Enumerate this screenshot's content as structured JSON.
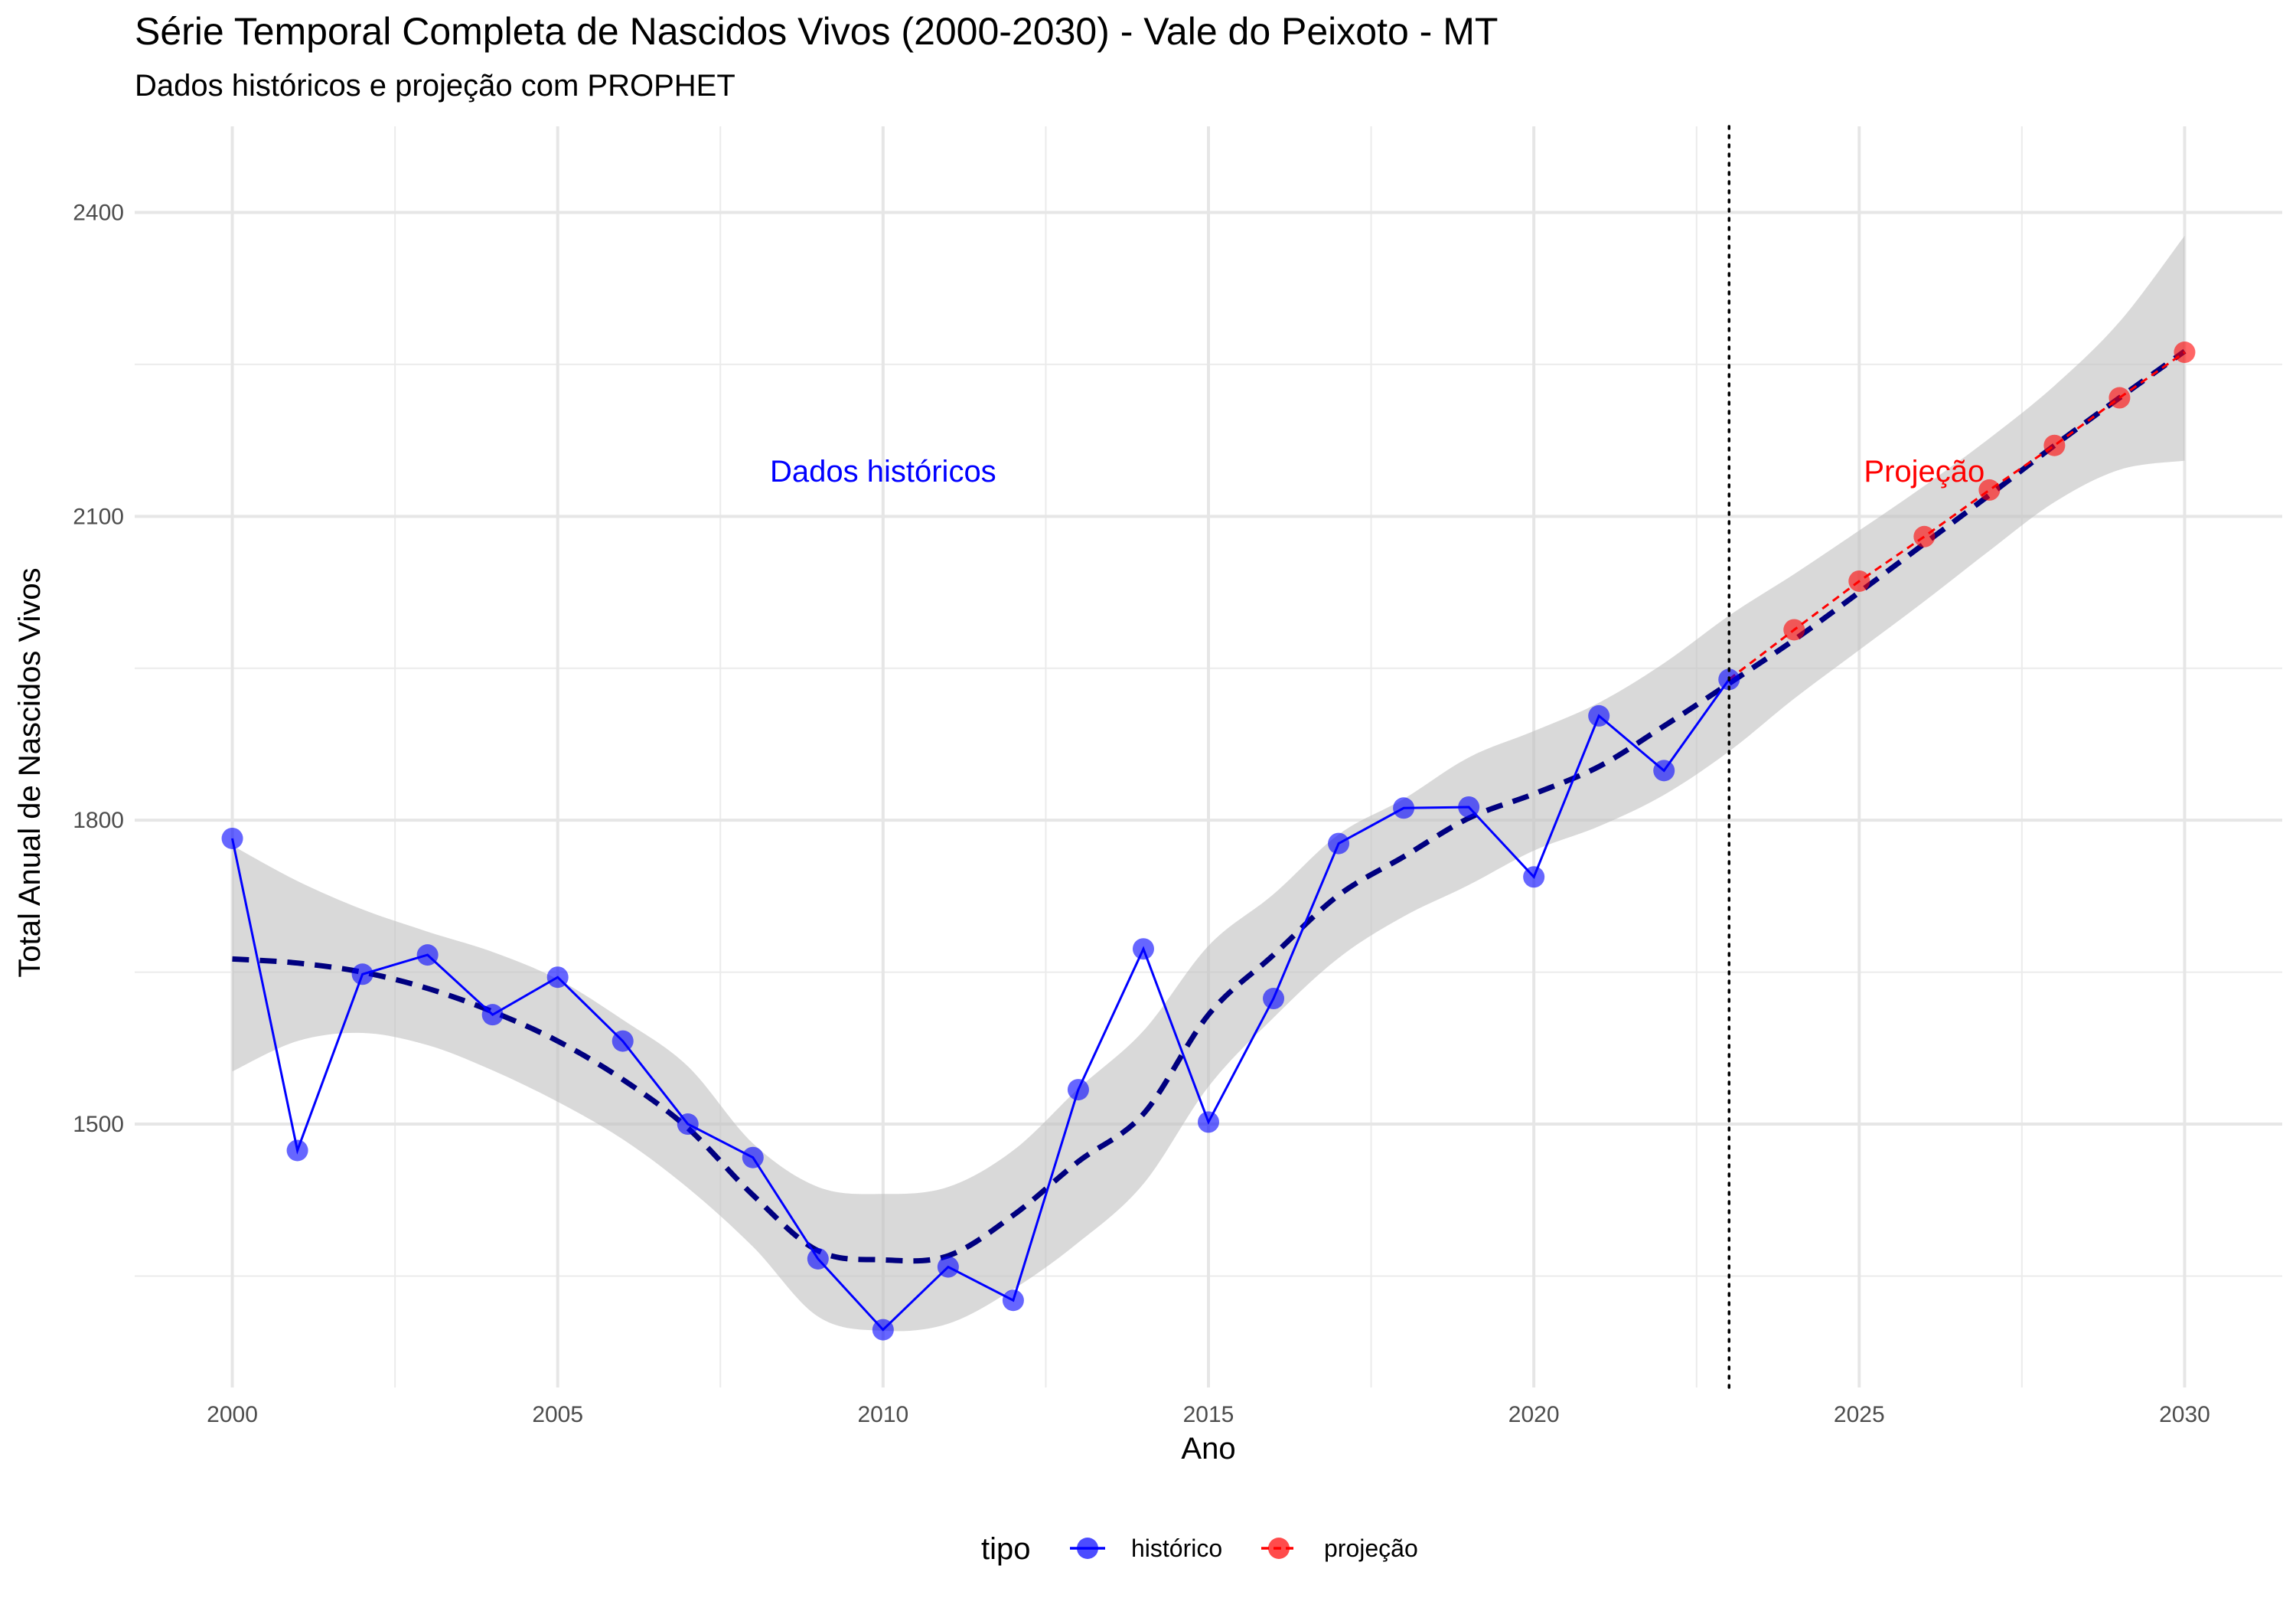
{
  "chart_data": {
    "type": "line",
    "title": "Série Temporal Completa de Nascidos Vivos (2000-2030) -  Vale do Peixoto - MT",
    "subtitle": "Dados históricos e projeção com PROPHET",
    "xlabel": "Ano",
    "ylabel": "Total Anual de Nascidos Vivos",
    "xlim": [
      1998.5,
      2031.5
    ],
    "ylim": [
      1240,
      2485
    ],
    "x_ticks": [
      2000,
      2005,
      2010,
      2015,
      2020,
      2025,
      2030
    ],
    "y_ticks": [
      1500,
      1800,
      2100,
      2400
    ],
    "grid": true,
    "split_year": 2023,
    "annotations": [
      {
        "text": "Dados históricos",
        "x": 2010,
        "y": 2145,
        "color": "#0000ff"
      },
      {
        "text": "Projeção",
        "x": 2026,
        "y": 2145,
        "color": "#ff0000"
      }
    ],
    "legend": {
      "title": "tipo",
      "position": "bottom",
      "entries": [
        {
          "label": "histórico",
          "color": "#0000ff"
        },
        {
          "label": "projeção",
          "color": "#ff0000"
        }
      ]
    },
    "series": [
      {
        "name": "histórico",
        "color": "#0000ff",
        "x": [
          2000,
          2001,
          2002,
          2003,
          2004,
          2005,
          2006,
          2007,
          2008,
          2009,
          2010,
          2011,
          2012,
          2013,
          2014,
          2015,
          2016,
          2017,
          2018,
          2019,
          2020,
          2021,
          2022,
          2023
        ],
        "y": [
          1782,
          1474,
          1648,
          1667,
          1608,
          1645,
          1582,
          1500,
          1467,
          1367,
          1297,
          1359,
          1326,
          1534,
          1673,
          1502,
          1624,
          1777,
          1812,
          1813,
          1744,
          1903,
          1849,
          1939
        ]
      },
      {
        "name": "projeção",
        "color": "#ff0000",
        "x": [
          2023,
          2024,
          2025,
          2026,
          2027,
          2028,
          2029,
          2030
        ],
        "y": [
          1939,
          1988,
          2036,
          2080,
          2126,
          2170,
          2217,
          2262
        ]
      }
    ],
    "trend": {
      "color": "#00007f",
      "x": [
        2000,
        2001,
        2002,
        2003,
        2004,
        2005,
        2006,
        2007,
        2008,
        2009,
        2010,
        2011,
        2012,
        2013,
        2014,
        2015,
        2016,
        2017,
        2018,
        2019,
        2020,
        2021,
        2022,
        2023,
        2024,
        2025,
        2026,
        2027,
        2028,
        2029,
        2030
      ],
      "y": [
        1663,
        1659,
        1650,
        1634,
        1611,
        1582,
        1544,
        1496,
        1430,
        1375,
        1366,
        1370,
        1410,
        1463,
        1510,
        1608,
        1667,
        1726,
        1764,
        1802,
        1826,
        1853,
        1893,
        1935,
        1978,
        2025,
        2073,
        2121,
        2170,
        2217,
        2263
      ],
      "lower": [
        1552,
        1582,
        1590,
        1578,
        1553,
        1522,
        1485,
        1437,
        1379,
        1310,
        1296,
        1303,
        1337,
        1383,
        1441,
        1537,
        1605,
        1664,
        1705,
        1736,
        1770,
        1794,
        1825,
        1868,
        1920,
        1968,
        2016,
        2066,
        2114,
        2146,
        2155
      ],
      "upper": [
        1775,
        1740,
        1712,
        1690,
        1670,
        1643,
        1603,
        1557,
        1481,
        1438,
        1431,
        1438,
        1474,
        1535,
        1592,
        1676,
        1727,
        1786,
        1821,
        1862,
        1888,
        1916,
        1955,
        2002,
        2043,
        2086,
        2130,
        2177,
        2229,
        2292,
        2377
      ]
    }
  }
}
